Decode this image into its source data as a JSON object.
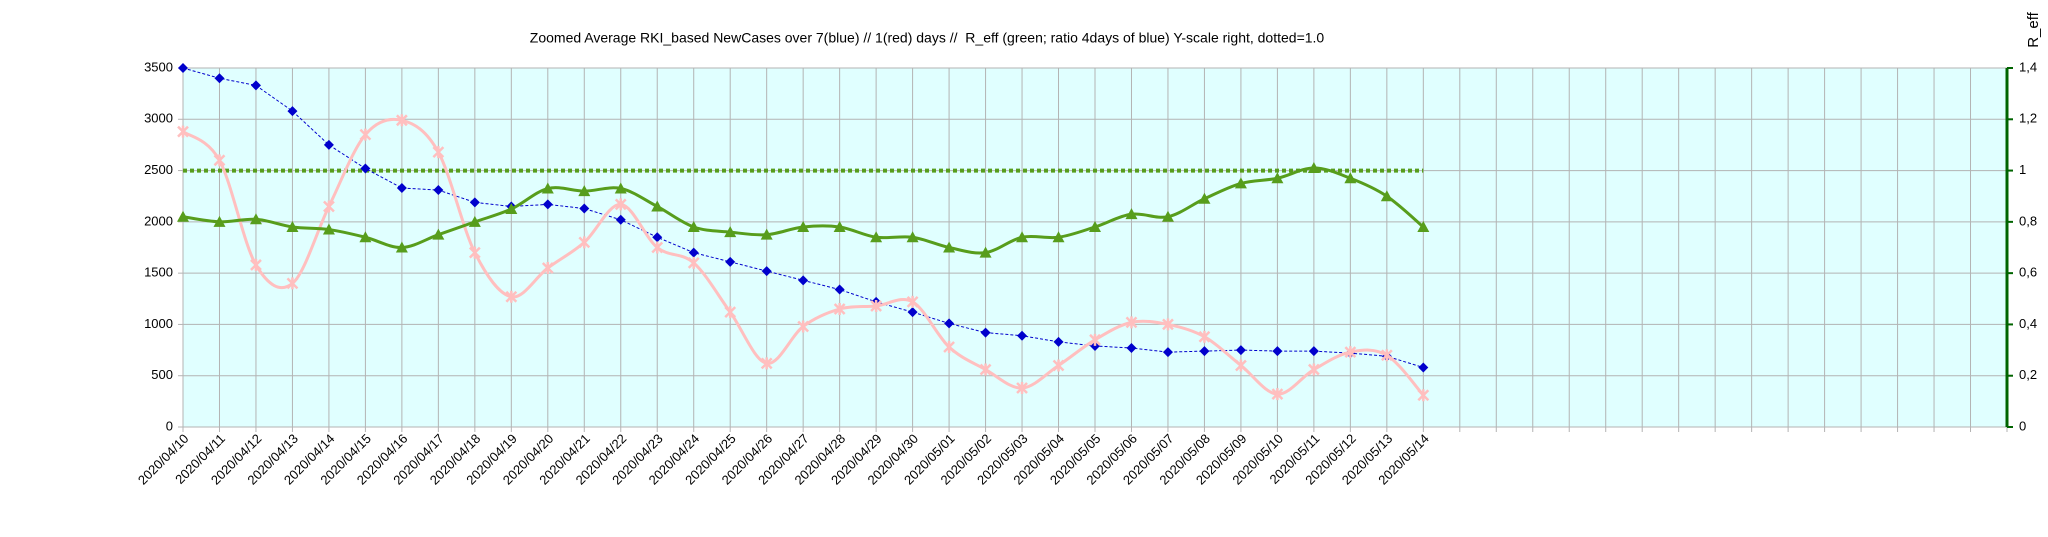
{
  "chart_data": {
    "type": "line",
    "title": "Zoomed Average RKI_based NewCases over 7(blue) // 1(red) days //  R_eff (green; ratio 4days of blue) Y-scale right, dotted=1.0",
    "y2_label": "R_eff",
    "categories": [
      "2020/04/10",
      "2020/04/11",
      "2020/04/12",
      "2020/04/13",
      "2020/04/14",
      "2020/04/15",
      "2020/04/16",
      "2020/04/17",
      "2020/04/18",
      "2020/04/19",
      "2020/04/20",
      "2020/04/21",
      "2020/04/22",
      "2020/04/23",
      "2020/04/24",
      "2020/04/25",
      "2020/04/26",
      "2020/04/27",
      "2020/04/28",
      "2020/04/29",
      "2020/04/30",
      "2020/05/01",
      "2020/05/02",
      "2020/05/03",
      "2020/05/04",
      "2020/05/05",
      "2020/05/06",
      "2020/05/07",
      "2020/05/08",
      "2020/05/09",
      "2020/05/10",
      "2020/05/11",
      "2020/05/12",
      "2020/05/13",
      "2020/05/14",
      null,
      null,
      null,
      null,
      null,
      null,
      null,
      null,
      null,
      null,
      null,
      null,
      null,
      null,
      null,
      null
    ],
    "series": [
      {
        "color": "#0000cc",
        "marker": "diamond",
        "smooth": false,
        "dash": true,
        "width": 1,
        "values": [
          3500,
          3400,
          3330,
          3080,
          2750,
          2520,
          2330,
          2310,
          2190,
          2150,
          2170,
          2130,
          2020,
          1850,
          1700,
          1610,
          1520,
          1430,
          1340,
          1220,
          1120,
          1010,
          920,
          890,
          830,
          790,
          770,
          730,
          740,
          750,
          740,
          740,
          720,
          690,
          580,
          null,
          null,
          null,
          null,
          null,
          null,
          null,
          null,
          null,
          null,
          null,
          null,
          null,
          null,
          null,
          null
        ]
      },
      {
        "color": "#ffbfbf",
        "marker": "star",
        "smooth": true,
        "dash": false,
        "width": 3,
        "values": [
          2880,
          2600,
          1580,
          1400,
          2150,
          2850,
          2990,
          2680,
          1700,
          1270,
          1550,
          1800,
          2170,
          1750,
          1600,
          1120,
          620,
          980,
          1150,
          1180,
          1220,
          780,
          560,
          380,
          600,
          850,
          1020,
          1000,
          880,
          600,
          320,
          560,
          730,
          700,
          310,
          null,
          null,
          null,
          null,
          null,
          null,
          null,
          null,
          null,
          null,
          null,
          null,
          null,
          null,
          null,
          null
        ]
      },
      {
        "color": "#579d1c",
        "marker": "triangle",
        "smooth": true,
        "dash": false,
        "width": 3,
        "axis": "y2",
        "values": [
          0.82,
          0.8,
          0.81,
          0.78,
          0.77,
          0.74,
          0.7,
          0.75,
          0.8,
          0.85,
          0.93,
          0.92,
          0.93,
          0.86,
          0.78,
          0.76,
          0.75,
          0.78,
          0.78,
          0.74,
          0.74,
          0.7,
          0.68,
          0.74,
          0.74,
          0.78,
          0.83,
          0.82,
          0.89,
          0.95,
          0.97,
          1.01,
          0.97,
          0.9,
          0.78,
          null,
          null,
          null,
          null,
          null,
          null,
          null,
          null,
          null,
          null,
          null,
          null,
          null,
          null,
          null,
          null
        ]
      }
    ],
    "reference_line": {
      "axis": "y2",
      "value": 1,
      "color": "#579d1c"
    },
    "ylim": [
      0,
      3500
    ],
    "yticks": [
      0,
      500,
      1000,
      1500,
      2000,
      2500,
      3000,
      3500
    ],
    "y2lim": [
      0,
      1.4
    ],
    "y2ticks": [
      0,
      {
        "value": 0.2,
        "label": "0,2"
      },
      {
        "value": 0.4,
        "label": "0,4"
      },
      {
        "value": 0.6,
        "label": "0,6"
      },
      {
        "value": 0.8,
        "label": "0,8"
      },
      1,
      {
        "value": 1.2,
        "label": "1,2"
      },
      {
        "value": 1.4,
        "label": "1,4"
      }
    ],
    "y2_axis_color": "#006400",
    "plot_background": "#e0ffff",
    "grid": true
  }
}
